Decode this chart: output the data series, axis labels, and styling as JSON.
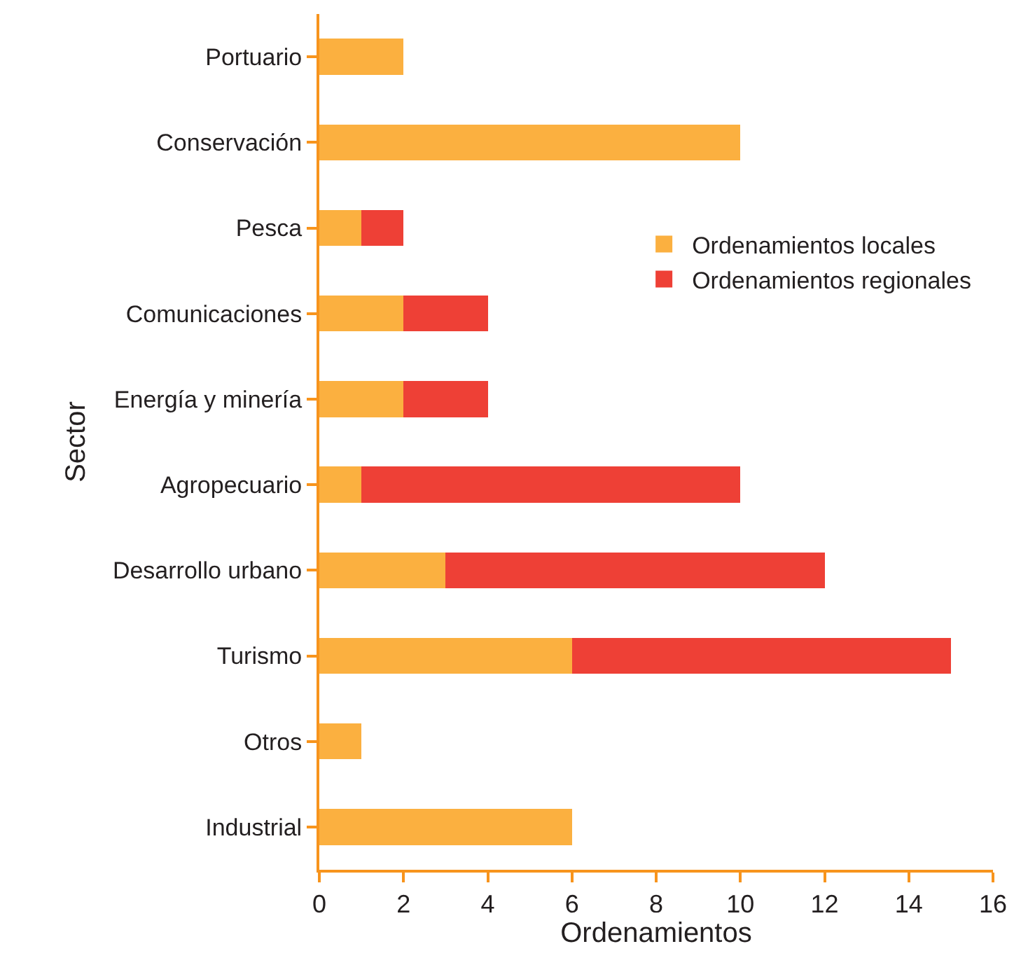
{
  "chart_data": {
    "type": "bar",
    "orientation": "horizontal",
    "stacked": true,
    "xlabel": "Ordenamientos",
    "ylabel": "Sector",
    "categories": [
      "Portuario",
      "Conservación",
      "Pesca",
      "Comunicaciones",
      "Energía y minería",
      "Agropecuario",
      "Desarrollo urbano",
      "Turismo",
      "Otros",
      "Industrial"
    ],
    "series": [
      {
        "name": "Ordenamientos locales",
        "color": "#fbb040",
        "values": [
          2,
          10,
          1,
          2,
          2,
          1,
          3,
          6,
          1,
          6
        ]
      },
      {
        "name": "Ordenamientos regionales",
        "color": "#ee4036",
        "values": [
          null,
          null,
          1,
          2,
          2,
          9,
          9,
          9,
          null,
          null
        ]
      }
    ],
    "xlim": [
      0,
      16
    ],
    "xticks": [
      0,
      2,
      4,
      6,
      8,
      10,
      12,
      14,
      16
    ],
    "grid": false,
    "legend": "top right"
  }
}
